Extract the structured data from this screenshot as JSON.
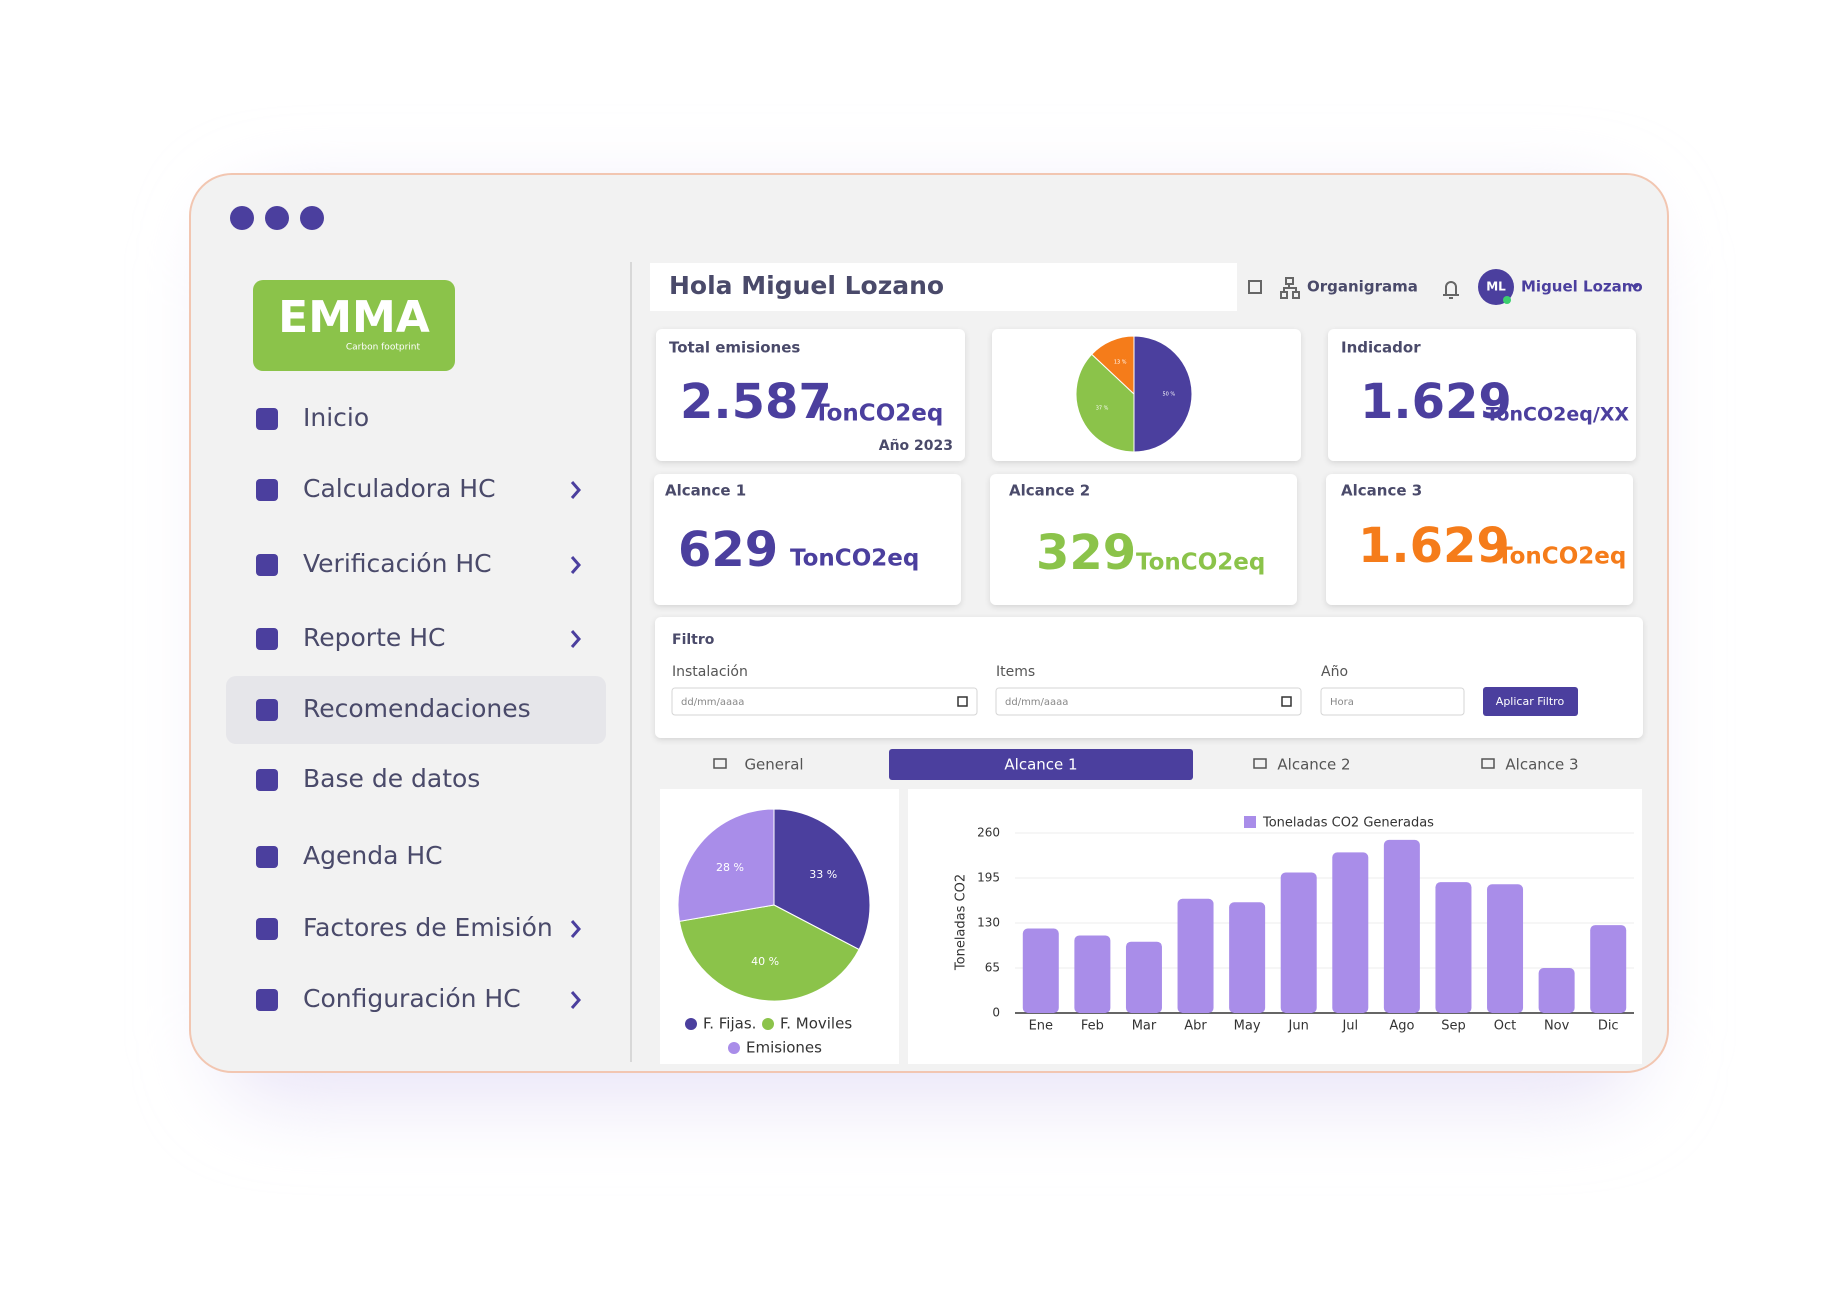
{
  "sidebar": {
    "logo": {
      "title": "EMMA",
      "subtitle": "Carbon footprint"
    },
    "menu": [
      {
        "label": "Inicio",
        "expandable": false
      },
      {
        "label": "Calculadora HC",
        "expandable": true
      },
      {
        "label": "Verificación HC",
        "expandable": true
      },
      {
        "label": "Reporte HC",
        "expandable": true
      },
      {
        "label": "Recomendaciones",
        "expandable": false,
        "active": true
      },
      {
        "label": "Base de datos",
        "expandable": false
      },
      {
        "label": "Agenda HC",
        "expandable": false
      },
      {
        "label": "Factores de Emisión",
        "expandable": true
      },
      {
        "label": "Configuración HC",
        "expandable": true
      }
    ]
  },
  "header": {
    "greeting": "Hola Miguel Lozano",
    "org_link": "Organigrama",
    "avatar": "ML",
    "user": "Miguel Lozano"
  },
  "cards": [
    {
      "title": "Total emisiones",
      "value": "2.587",
      "unit": "TonCO2eq",
      "note": "Año 2023",
      "color": "#4b3f9e"
    },
    {
      "title": "Indicador",
      "value": "1.629",
      "unit": "TonCO2eq/XX",
      "color": "#4b3f9e"
    },
    {
      "title": "Alcance 1",
      "value": "629",
      "unit": "TonCO2eq",
      "color": "#4b3f9e"
    },
    {
      "title": "Alcance 2",
      "value": "329",
      "unit": "TonCO2eq",
      "color": "#8bc34a"
    },
    {
      "title": "Alcance 3",
      "value": "1.629",
      "unit": "TonCO2eq",
      "color": "#f57c1a"
    }
  ],
  "filter": {
    "title": "Filtro",
    "fields": [
      {
        "label": "Instalación",
        "placeholder": "dd/mm/aaaa"
      },
      {
        "label": "Items",
        "placeholder": "dd/mm/aaaa"
      },
      {
        "label": "Año",
        "placeholder": "Hora"
      }
    ],
    "button": "Aplicar Filtro"
  },
  "tabs": [
    {
      "label": "General"
    },
    {
      "label": "Alcance 1",
      "active": true
    },
    {
      "label": "Alcance 2"
    },
    {
      "label": "Alcance 3"
    }
  ],
  "chart_data": [
    {
      "type": "pie",
      "values": [
        50,
        37,
        13
      ],
      "value_labels": [
        "50 %",
        "37 %",
        "13 %"
      ],
      "colors": [
        "#4b3f9e",
        "#8bc34a",
        "#f57c1a"
      ]
    },
    {
      "type": "pie",
      "categories": [
        "F. Fijas.",
        "F. Moviles",
        "Emisiones"
      ],
      "values": [
        33,
        40,
        28
      ],
      "value_labels": [
        "33 %",
        "40 %",
        "28 %"
      ],
      "colors": [
        "#4b3f9e",
        "#8bc34a",
        "#a98de9"
      ]
    },
    {
      "type": "bar",
      "ylabel": "Toneladas CO2",
      "categories": [
        "Ene",
        "Feb",
        "Mar",
        "Abr",
        "May",
        "Jun",
        "Jul",
        "Ago",
        "Sep",
        "Oct",
        "Nov",
        "Dic"
      ],
      "series": [
        {
          "name": "Toneladas CO2 Generadas",
          "color": "#a98de9",
          "values": [
            122,
            112,
            103,
            165,
            160,
            203,
            232,
            250,
            189,
            186,
            65,
            127
          ]
        }
      ],
      "ylim": [
        0,
        260
      ],
      "yticks": [
        0,
        65,
        130,
        195,
        260
      ],
      "grid": true
    }
  ]
}
